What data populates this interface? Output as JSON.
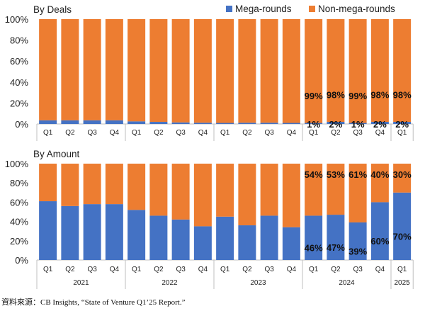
{
  "legend": {
    "items": [
      {
        "name": "Mega-rounds",
        "color": "#4472C4"
      },
      {
        "name": "Non-mega-rounds",
        "color": "#ED7D31"
      }
    ],
    "placement": "top-right"
  },
  "source_note": "資料來源：CB Insights, “State of Venture Q1’25 Report.”",
  "chart_data": [
    {
      "type": "bar",
      "stacked": true,
      "title": "By Deals",
      "yticks": [
        "0%",
        "20%",
        "40%",
        "60%",
        "80%",
        "100%"
      ],
      "ylim": [
        0,
        100
      ],
      "categories": [
        "Q1",
        "Q2",
        "Q3",
        "Q4",
        "Q1",
        "Q2",
        "Q3",
        "Q4",
        "Q1",
        "Q2",
        "Q3",
        "Q4",
        "Q1",
        "Q2",
        "Q3",
        "Q4",
        "Q1"
      ],
      "series": [
        {
          "name": "Mega-rounds",
          "color": "#4472C4",
          "values": [
            3.5,
            3.5,
            3.5,
            3.5,
            2.5,
            2,
            1.5,
            1.2,
            1,
            1.2,
            1.2,
            1,
            1,
            2,
            1,
            2,
            2
          ],
          "labels": [
            "",
            "",
            "",
            "",
            "",
            "",
            "",
            "",
            "",
            "",
            "",
            "",
            "1%",
            "2%",
            "1%",
            "2%",
            "2%"
          ]
        },
        {
          "name": "Non-mega-rounds",
          "color": "#ED7D31",
          "values": [
            96.5,
            96.5,
            96.5,
            96.5,
            97.5,
            98,
            98.5,
            98.8,
            99,
            98.8,
            98.8,
            99,
            99,
            98,
            99,
            98,
            98
          ],
          "labels": [
            "",
            "",
            "",
            "",
            "",
            "",
            "",
            "",
            "",
            "",
            "",
            "",
            "99%",
            "98%",
            "99%",
            "98%",
            "98%"
          ]
        }
      ]
    },
    {
      "type": "bar",
      "stacked": true,
      "title": "By Amount",
      "yticks": [
        "0%",
        "20%",
        "40%",
        "60%",
        "80%",
        "100%"
      ],
      "ylim": [
        0,
        100
      ],
      "categories": [
        "Q1",
        "Q2",
        "Q3",
        "Q4",
        "Q1",
        "Q2",
        "Q3",
        "Q4",
        "Q1",
        "Q2",
        "Q3",
        "Q4",
        "Q1",
        "Q2",
        "Q3",
        "Q4",
        "Q1"
      ],
      "years": [
        {
          "label": "2021",
          "count": 4
        },
        {
          "label": "2022",
          "count": 4
        },
        {
          "label": "2023",
          "count": 4
        },
        {
          "label": "2024",
          "count": 4
        },
        {
          "label": "2025",
          "count": 1
        }
      ],
      "series": [
        {
          "name": "Mega-rounds",
          "color": "#4472C4",
          "values": [
            61,
            56,
            58,
            58,
            52,
            46,
            42,
            35,
            45,
            36,
            46,
            34,
            46,
            47,
            39,
            60,
            70
          ],
          "labels": [
            "",
            "",
            "",
            "",
            "",
            "",
            "",
            "",
            "",
            "",
            "",
            "",
            "46%",
            "47%",
            "39%",
            "60%",
            "70%"
          ]
        },
        {
          "name": "Non-mega-rounds",
          "color": "#ED7D31",
          "values": [
            39,
            44,
            42,
            42,
            48,
            54,
            58,
            65,
            55,
            64,
            54,
            66,
            54,
            53,
            61,
            40,
            30
          ],
          "labels": [
            "",
            "",
            "",
            "",
            "",
            "",
            "",
            "",
            "",
            "",
            "",
            "",
            "54%",
            "53%",
            "61%",
            "40%",
            "30%"
          ]
        }
      ]
    }
  ]
}
